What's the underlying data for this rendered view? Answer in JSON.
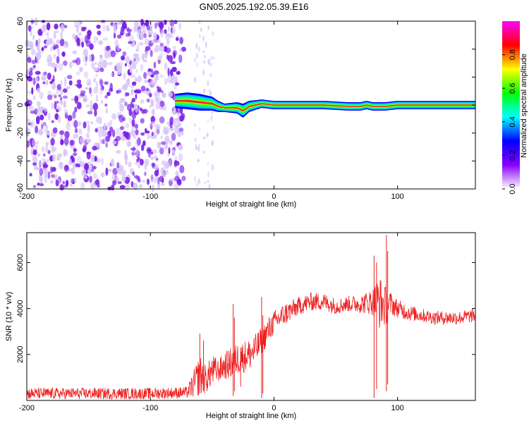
{
  "title": "GN05.2025.192.05.39.E16",
  "colors": {
    "snr_line": "#ee2020",
    "spectral_background": "#ffffff",
    "noise_dark": "#7a20e8",
    "noise_light": "#d8c8f8"
  },
  "chart_data": [
    {
      "type": "heatmap",
      "title": "GN05.2025.192.05.39.E16",
      "xlabel": "Height of straight line (km)",
      "ylabel": "Frequency (Hz)",
      "xlim": [
        -200,
        163
      ],
      "ylim": [
        -60,
        60
      ],
      "xticks": [
        -200,
        -100,
        0,
        100
      ],
      "yticks": [
        -60,
        -40,
        -20,
        0,
        20,
        40,
        60
      ],
      "grid": false,
      "noise_region": {
        "x": [
          -200,
          -73
        ],
        "y": [
          -60,
          60
        ]
      },
      "sparse_noise_columns": [
        -63,
        -60,
        -56,
        -53,
        -50
      ],
      "signal_track": {
        "x": [
          -80,
          -70,
          -60,
          -50,
          -45,
          -40,
          -30,
          -25,
          -20,
          -10,
          0,
          20,
          40,
          60,
          70,
          75,
          80,
          90,
          100,
          120,
          140,
          163
        ],
        "center": [
          3,
          3,
          2,
          1,
          -1,
          -2,
          -2,
          -4,
          -1,
          1,
          0,
          0,
          0,
          -1,
          -1,
          0,
          -1,
          -1,
          0,
          0,
          0,
          0
        ],
        "halfwidth": [
          5,
          6,
          6,
          5,
          4,
          3,
          4,
          5,
          4,
          3,
          3,
          3,
          3,
          3,
          3,
          3,
          3,
          3,
          3,
          3,
          3,
          3
        ]
      },
      "colorbar": {
        "label": "Normalized spectral amplitude",
        "range": [
          0,
          1
        ],
        "ticks": [
          0.0,
          0.2,
          0.4,
          0.6,
          0.8
        ],
        "colormap": [
          "#ff00ff",
          "#ff0000",
          "#ffff00",
          "#00ff00",
          "#00ffff",
          "#0000ff",
          "#8800ff",
          "#ffffff"
        ]
      }
    },
    {
      "type": "line",
      "xlabel": "Height of straight line (km)",
      "ylabel": "SNR (10 * v/v)",
      "xlim": [
        -200,
        163
      ],
      "ylim": [
        0,
        7300
      ],
      "xticks": [
        -200,
        -100,
        0,
        100
      ],
      "yticks": [
        2000,
        4000,
        6000
      ],
      "grid": false,
      "series": [
        {
          "envelope": {
            "x": [
              -200,
              -150,
              -100,
              -70,
              -65,
              -60,
              -55,
              -50,
              -45,
              -40,
              -35,
              -30,
              -25,
              -20,
              -15,
              -10,
              -5,
              0,
              10,
              20,
              30,
              40,
              50,
              60,
              70,
              80,
              85,
              90,
              95,
              100,
              110,
              120,
              130,
              140,
              150,
              163
            ],
            "mean": [
              300,
              300,
              300,
              350,
              700,
              1100,
              900,
              1300,
              1300,
              1500,
              1600,
              1800,
              1900,
              2000,
              2200,
              2600,
              3000,
              3400,
              3800,
              4100,
              4300,
              4300,
              4100,
              4200,
              4200,
              4300,
              4300,
              4100,
              4200,
              4000,
              3800,
              3700,
              3600,
              3600,
              3600,
              3700
            ],
            "amp": [
              250,
              250,
              250,
              250,
              600,
              900,
              600,
              700,
              500,
              600,
              700,
              700,
              700,
              700,
              700,
              600,
              600,
              500,
              500,
              400,
              400,
              400,
              350,
              350,
              400,
              600,
              1200,
              900,
              500,
              400,
              350,
              300,
              300,
              300,
              300,
              300
            ]
          },
          "spikes": [
            {
              "x": -60,
              "min": 300,
              "max": 2900
            },
            {
              "x": -57,
              "min": 400,
              "max": 2600
            },
            {
              "x": -33,
              "min": 200,
              "max": 4200
            },
            {
              "x": -32,
              "min": 400,
              "max": 3600
            },
            {
              "x": -27,
              "min": 600,
              "max": 2300
            },
            {
              "x": -10,
              "min": 100,
              "max": 4500
            },
            {
              "x": -9,
              "min": 300,
              "max": 3700
            },
            {
              "x": 81,
              "min": 100,
              "max": 6300
            },
            {
              "x": 83,
              "min": 500,
              "max": 6000
            },
            {
              "x": 91,
              "min": 400,
              "max": 7200
            },
            {
              "x": 92,
              "min": 700,
              "max": 6500
            }
          ]
        }
      ]
    }
  ]
}
